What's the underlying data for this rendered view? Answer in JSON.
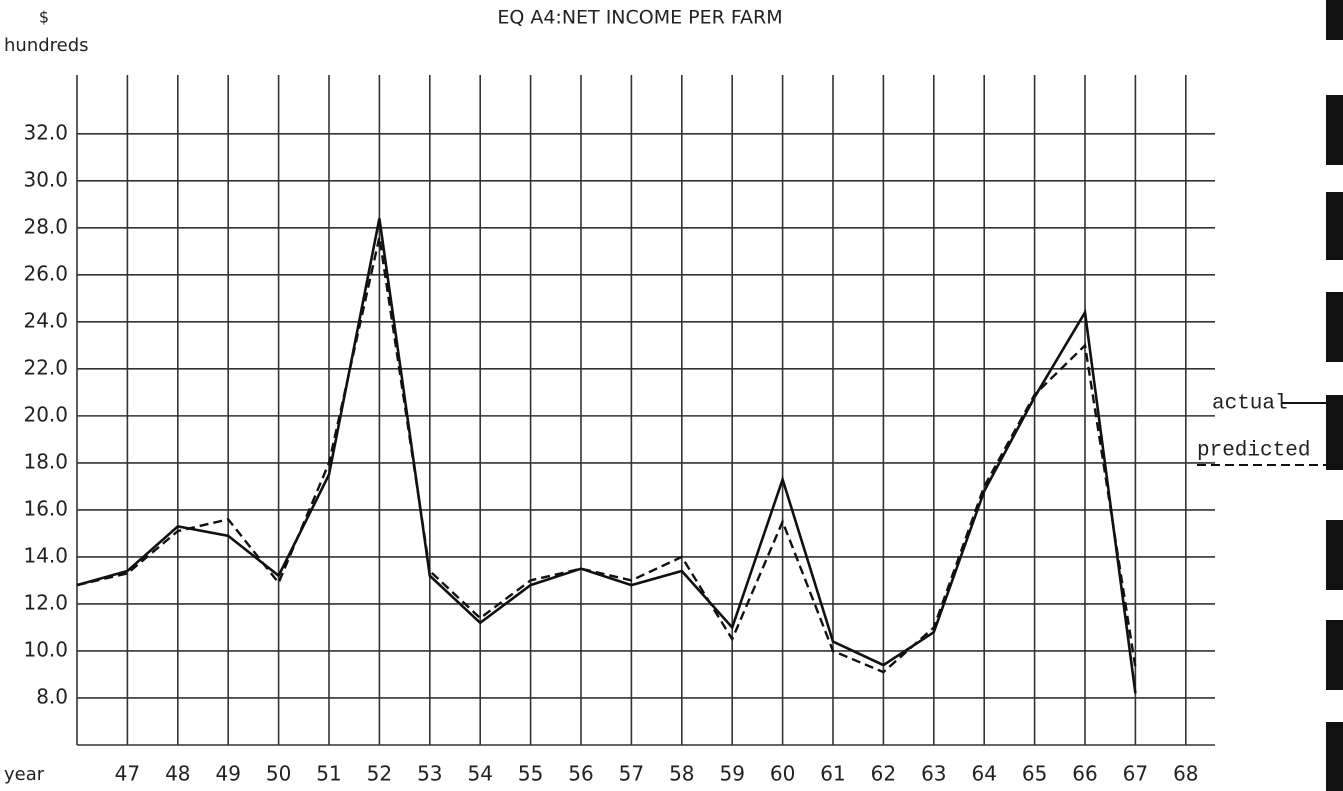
{
  "chart_data": {
    "type": "line",
    "title": "EQ A4:NET INCOME PER FARM",
    "y_unit": "$",
    "y_label": "hundreds",
    "x_label": "year",
    "categories": [
      null,
      "47",
      "48",
      "49",
      "50",
      "51",
      "52",
      "53",
      "54",
      "55",
      "56",
      "57",
      "58",
      "59",
      "60",
      "61",
      "62",
      "63",
      "64",
      "65",
      "66",
      "67",
      "68"
    ],
    "series": [
      {
        "name": "actual",
        "color": "#111111",
        "dash": false,
        "values": [
          12.8,
          13.4,
          15.3,
          14.9,
          13.2,
          17.5,
          28.4,
          13.2,
          11.2,
          12.8,
          13.5,
          12.8,
          13.4,
          11.0,
          17.3,
          10.4,
          9.4,
          10.8,
          16.8,
          20.8,
          24.4,
          8.2,
          null
        ]
      },
      {
        "name": "predicted",
        "color": "#111111",
        "dash": true,
        "values": [
          12.8,
          13.3,
          15.1,
          15.6,
          12.9,
          18.0,
          27.6,
          13.4,
          11.4,
          13.0,
          13.5,
          13.0,
          14.0,
          10.5,
          15.5,
          10.0,
          9.1,
          11.0,
          17.0,
          20.9,
          23.0,
          9.3,
          null
        ]
      }
    ],
    "ylim": [
      6,
      34.5
    ],
    "yticks": [
      {
        "value": 8,
        "label": "8.0"
      },
      {
        "value": 10,
        "label": "10.0"
      },
      {
        "value": 12,
        "label": "12.0"
      },
      {
        "value": 14,
        "label": "14.0"
      },
      {
        "value": 16,
        "label": "16.0"
      },
      {
        "value": 18,
        "label": "18.0"
      },
      {
        "value": 20,
        "label": "20.0"
      },
      {
        "value": 22,
        "label": "22.0"
      },
      {
        "value": 24,
        "label": "24.0"
      },
      {
        "value": 26,
        "label": "26.0"
      },
      {
        "value": 28,
        "label": "28.0"
      },
      {
        "value": 30,
        "label": "30.0"
      },
      {
        "value": 32,
        "label": "32.0"
      }
    ],
    "grid": true
  }
}
